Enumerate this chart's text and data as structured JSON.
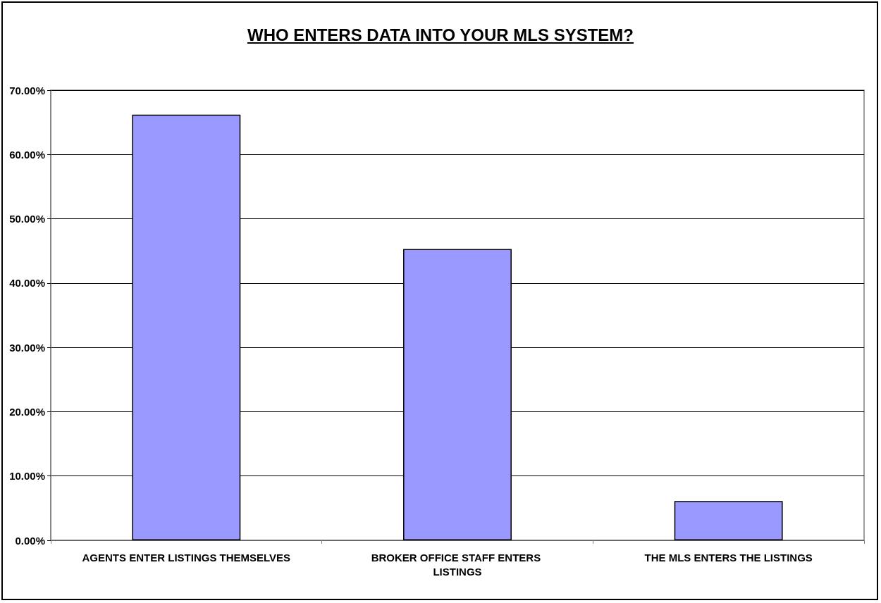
{
  "chart_data": {
    "type": "bar",
    "title": "WHO ENTERS DATA INTO YOUR MLS SYSTEM?",
    "categories": [
      "AGENTS ENTER LISTINGS THEMSELVES",
      "BROKER OFFICE STAFF ENTERS LISTINGS",
      "THE MLS ENTERS THE LISTINGS"
    ],
    "values": [
      66.2,
      45.3,
      6.1
    ],
    "color": "#9999ff",
    "ylim": [
      0,
      70
    ],
    "yticks": [
      {
        "value": 0,
        "label": "0.00%"
      },
      {
        "value": 10,
        "label": "10.00%"
      },
      {
        "value": 20,
        "label": "20.00%"
      },
      {
        "value": 30,
        "label": "30.00%"
      },
      {
        "value": 40,
        "label": "40.00%"
      },
      {
        "value": 50,
        "label": "50.00%"
      },
      {
        "value": 60,
        "label": "60.00%"
      },
      {
        "value": 70,
        "label": "70.00%"
      }
    ],
    "grid": "y"
  }
}
